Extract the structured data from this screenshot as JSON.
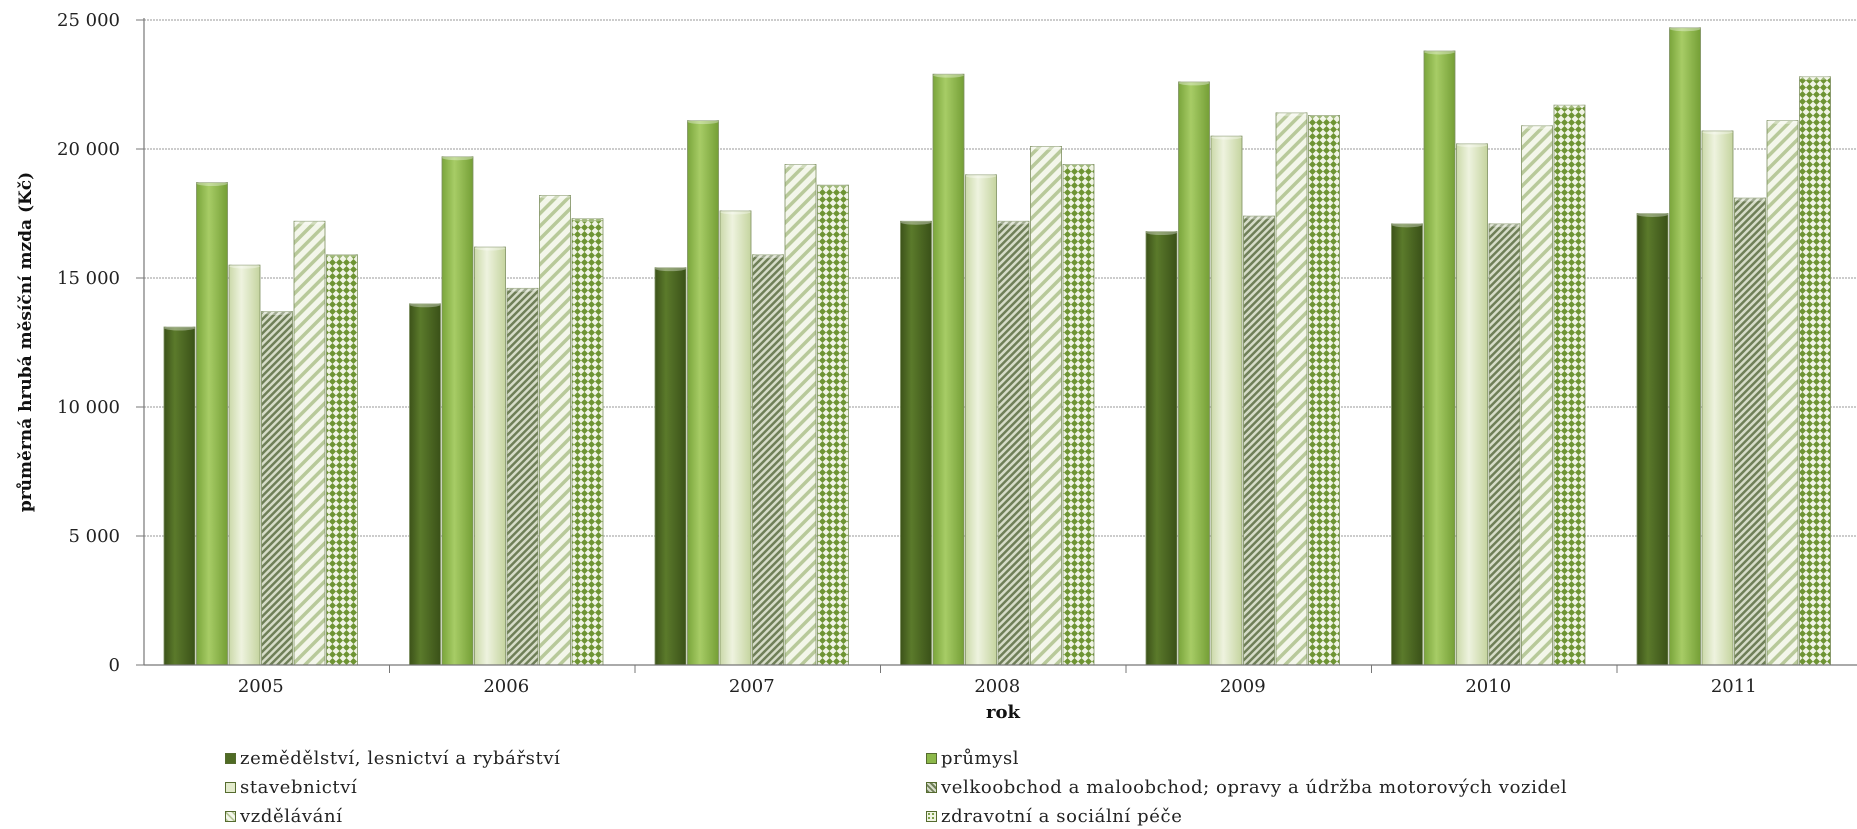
{
  "chart_data": {
    "type": "bar",
    "title": "",
    "xlabel": "rok",
    "ylabel": "průměrná hrubá měsíční mzda (Kč)",
    "ylim": [
      0,
      25000
    ],
    "yticks": [
      "0",
      "5 000",
      "10 000",
      "15 000",
      "20 000",
      "25 000"
    ],
    "ytick_values": [
      0,
      5000,
      10000,
      15000,
      20000,
      25000
    ],
    "grid": true,
    "legend_position": "bottom",
    "categories": [
      "2005",
      "2006",
      "2007",
      "2008",
      "2009",
      "2010",
      "2011"
    ],
    "series": [
      {
        "name": "zemědělství, lesnictví a rybářství",
        "color": "#4f6b24",
        "pattern": "solid-dark",
        "values": [
          13100,
          14000,
          15400,
          17200,
          16800,
          17100,
          17500
        ]
      },
      {
        "name": "průmysl",
        "color": "#8cb84a",
        "pattern": "solid-light",
        "values": [
          18700,
          19700,
          21100,
          22900,
          22600,
          23800,
          24700
        ]
      },
      {
        "name": "stavebnictví",
        "color": "#d9e4bf",
        "pattern": "pale",
        "values": [
          15500,
          16200,
          17600,
          19000,
          20500,
          20200,
          20700
        ]
      },
      {
        "name": "velkoobchod a maloobchod; opravy a údržba motorových vozidel",
        "color": "#8a9a72",
        "pattern": "dense-diagonal",
        "values": [
          13700,
          14600,
          15900,
          17200,
          17400,
          17100,
          18100
        ]
      },
      {
        "name": "vzdělávání",
        "color": "#c8d7a8",
        "pattern": "wide-diagonal",
        "values": [
          17200,
          18200,
          19400,
          20100,
          21400,
          20900,
          21100
        ]
      },
      {
        "name": "zdravotní a sociální péče",
        "color": "#6e9433",
        "pattern": "dots",
        "values": [
          15900,
          17300,
          18600,
          19400,
          21300,
          21700,
          22800
        ]
      }
    ]
  }
}
